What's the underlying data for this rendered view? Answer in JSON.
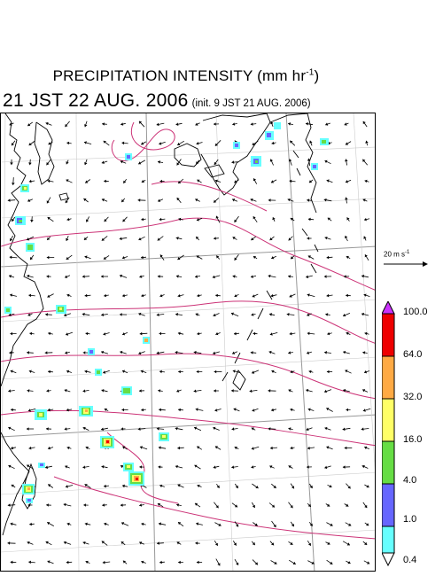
{
  "title": {
    "main": "PRECIPITATION INTENSITY (mm hr",
    "unit_exponent": "-1",
    "unit_close": ")"
  },
  "subtitle": {
    "valid_time": "21 JST 22 AUG. 2006",
    "init_time": "(init. 9 JST 21 AUG. 2006)"
  },
  "wind_scale": {
    "label": "20 m s",
    "exponent": "-1"
  },
  "colorbar": {
    "levels": [
      "0.4",
      "1.0",
      "4.0",
      "16.0",
      "32.0",
      "64.0",
      "100.0"
    ],
    "colors": [
      "#ffffff",
      "#66ffff",
      "#6666ff",
      "#66dd44",
      "#ffff66",
      "#ffaa44",
      "#ee0000",
      "#cc33ff"
    ]
  },
  "colors": {
    "contour": "#cc3377",
    "coast": "#000000",
    "grid": "#aaaaaa",
    "vector": "#000000"
  }
}
